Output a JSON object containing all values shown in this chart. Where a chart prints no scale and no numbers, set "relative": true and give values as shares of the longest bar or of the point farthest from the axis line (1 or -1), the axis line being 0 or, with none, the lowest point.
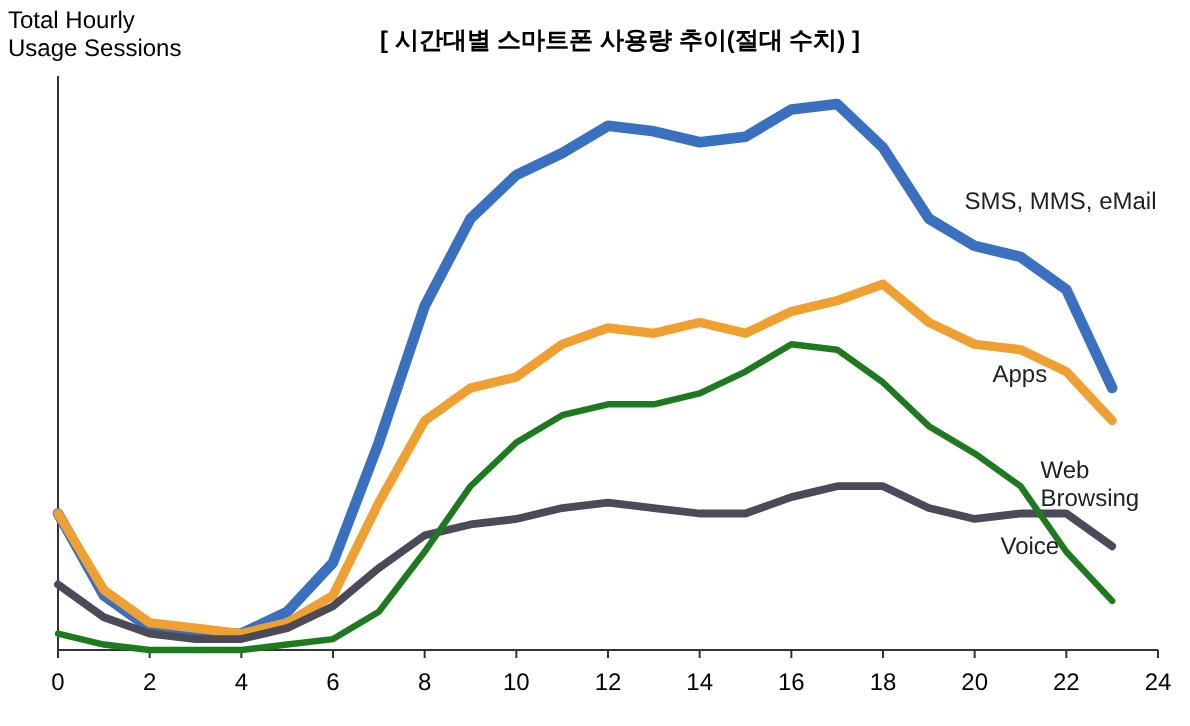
{
  "chart_data": {
    "type": "line",
    "title": "[ 시간대별 스마트폰 사용량 추이(절대 수치) ]",
    "ylabel": "Total Hourly Usage Sessions",
    "relative": true,
    "x": [
      0,
      1,
      2,
      3,
      4,
      5,
      6,
      7,
      8,
      9,
      10,
      11,
      12,
      13,
      14,
      15,
      16,
      17,
      18,
      19,
      20,
      21,
      22,
      23
    ],
    "xlim": [
      0,
      24
    ],
    "xticks": [
      0,
      2,
      4,
      6,
      8,
      10,
      12,
      14,
      16,
      18,
      20,
      22,
      24
    ],
    "grid": false,
    "marker": "none",
    "line_style": "solid",
    "series": [
      {
        "name": "SMS, MMS, eMail",
        "color": "#3a70c0",
        "values": [
          0.25,
          0.1,
          0.04,
          0.03,
          0.03,
          0.07,
          0.16,
          0.38,
          0.63,
          0.79,
          0.87,
          0.91,
          0.96,
          0.95,
          0.93,
          0.94,
          0.99,
          1.0,
          0.92,
          0.79,
          0.74,
          0.72,
          0.66,
          0.48
        ]
      },
      {
        "name": "Apps",
        "color": "#f0a030",
        "values": [
          0.25,
          0.11,
          0.05,
          0.04,
          0.03,
          0.05,
          0.1,
          0.27,
          0.42,
          0.48,
          0.5,
          0.56,
          0.59,
          0.58,
          0.6,
          0.58,
          0.62,
          0.64,
          0.67,
          0.6,
          0.56,
          0.55,
          0.51,
          0.42
        ]
      },
      {
        "name": "Web Browsing",
        "color": "#4a4a58",
        "values": [
          0.12,
          0.06,
          0.03,
          0.02,
          0.02,
          0.04,
          0.08,
          0.15,
          0.21,
          0.23,
          0.24,
          0.26,
          0.27,
          0.26,
          0.25,
          0.25,
          0.28,
          0.3,
          0.3,
          0.26,
          0.24,
          0.25,
          0.25,
          0.19
        ]
      },
      {
        "name": "Voice",
        "color": "#1e7a1e",
        "values": [
          0.03,
          0.01,
          0.0,
          0.0,
          0.0,
          0.01,
          0.02,
          0.07,
          0.18,
          0.3,
          0.38,
          0.43,
          0.45,
          0.45,
          0.47,
          0.51,
          0.56,
          0.55,
          0.49,
          0.41,
          0.36,
          0.3,
          0.18,
          0.09
        ]
      }
    ]
  }
}
